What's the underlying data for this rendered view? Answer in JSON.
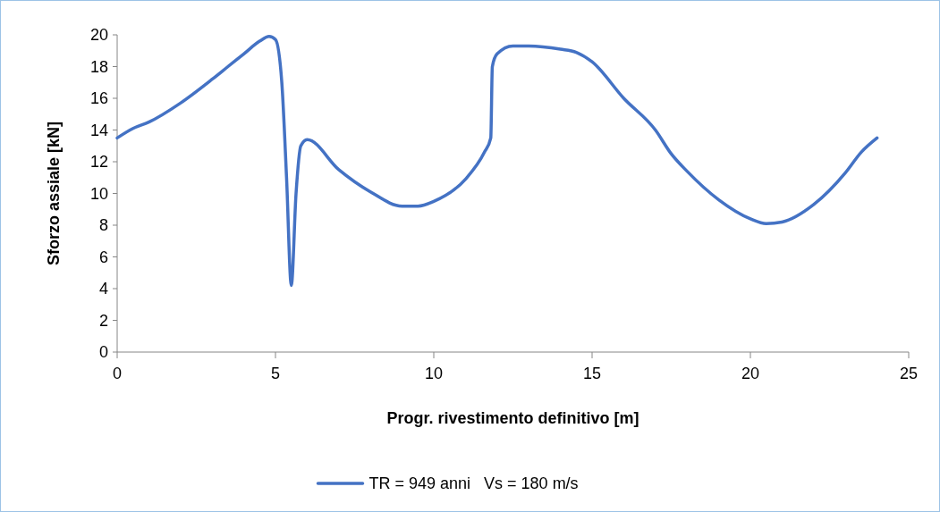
{
  "chart_data": {
    "type": "line",
    "xlabel": "Progr. rivestimento definitivo [m]",
    "ylabel": "Sforzo assiale [kN]",
    "xlim": [
      0,
      25
    ],
    "xticks": [
      0,
      5,
      10,
      15,
      20,
      25
    ],
    "ylim": [
      0,
      20
    ],
    "yticks": [
      0,
      2,
      4,
      6,
      8,
      10,
      12,
      14,
      16,
      18,
      20
    ],
    "grid": false,
    "legend": "bottom",
    "marker": "none",
    "line_style": "solid",
    "series": [
      {
        "name": "TR = 949 anni   Vs = 180 m/s",
        "color": "#4472c4",
        "x": [
          0,
          0.5,
          1,
          2,
          3,
          3.5,
          4,
          4.5,
          4.8,
          5,
          5.2,
          5.35,
          5.5,
          5.65,
          5.8,
          6,
          7,
          8,
          9,
          9.5,
          10,
          11,
          11.6,
          11.8,
          11.85,
          12,
          12.5,
          13,
          14,
          14.5,
          15,
          16,
          17,
          17.5,
          18,
          19,
          20,
          20.5,
          21,
          22,
          23,
          23.5,
          24
        ],
        "values": [
          13.5,
          14.1,
          14.5,
          15.7,
          17.2,
          18,
          18.8,
          19.6,
          19.9,
          19.7,
          17,
          11,
          4.2,
          10,
          13,
          13.4,
          11.5,
          10.1,
          9.2,
          9.2,
          9.5,
          10.9,
          12.6,
          13.5,
          18,
          18.8,
          19.3,
          19.3,
          19.1,
          18.9,
          18.3,
          16,
          14,
          12.5,
          11.4,
          9.6,
          8.4,
          8.1,
          8.2,
          9.3,
          11.3,
          12.6,
          13.5
        ]
      }
    ]
  }
}
